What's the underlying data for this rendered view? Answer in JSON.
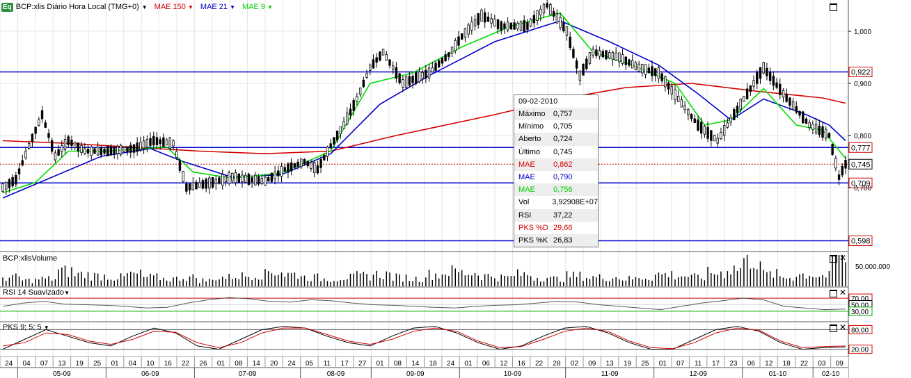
{
  "header": {
    "logo": "Eq",
    "symbol_title": "BCP:xlis Diário Hora Local (TMG+0)",
    "indicators": [
      {
        "label": "MAE 150",
        "color": "#d40000"
      },
      {
        "label": "MAE 21",
        "color": "#0000cc"
      },
      {
        "label": "MAE 9",
        "color": "#00cc00"
      }
    ]
  },
  "price_panel": {
    "y_ticks": [
      "1,000",
      "0,900",
      "0,800",
      "0,700"
    ],
    "h_lines": [
      {
        "value": 0.922,
        "label": "0,922"
      },
      {
        "value": 0.777,
        "label": "0,777"
      },
      {
        "value": 0.709,
        "label": "0,709"
      },
      {
        "value": 0.598,
        "label": "0,598"
      }
    ],
    "last_line": {
      "value": 0.745,
      "label": "0,745"
    }
  },
  "info_box": {
    "date": "09-02-2010",
    "rows": [
      {
        "label": "Máximo",
        "value": "0,757",
        "color": "#000000"
      },
      {
        "label": "Mínimo",
        "value": "0,705",
        "color": "#000000"
      },
      {
        "label": "Aberto",
        "value": "0,724",
        "color": "#000000"
      },
      {
        "label": "Último",
        "value": "0,745",
        "color": "#000000"
      },
      {
        "label": "MAE",
        "value": "0,862",
        "color": "#d40000"
      },
      {
        "label": "MAE",
        "value": "0,790",
        "color": "#0000cc"
      },
      {
        "label": "MAE",
        "value": "0,756",
        "color": "#00cc00"
      },
      {
        "label": "Vol",
        "value": "3,92908E+07",
        "color": "#000000"
      },
      {
        "label": "RSI",
        "value": "37,22",
        "color": "#000000"
      },
      {
        "label": "PKS %D",
        "value": "29,66",
        "color": "#d40000"
      },
      {
        "label": "PKS %K",
        "value": "26,83",
        "color": "#000000"
      }
    ]
  },
  "volume_panel": {
    "title": "BCP:xlisVolume",
    "tick_label": "50.000.000"
  },
  "rsi_panel": {
    "title": "RSI 14 Suavizado",
    "levels": [
      "70,00",
      "50,00",
      "30,00"
    ]
  },
  "pks_panel": {
    "title": "PKS 9; 5; 5",
    "levels": [
      "80,00",
      "20,00"
    ]
  },
  "x_axis": {
    "day_labels": [
      "24",
      "04",
      "07",
      "13",
      "19",
      "25",
      "01",
      "04",
      "10",
      "16",
      "22",
      "26",
      "01",
      "08",
      "14",
      "20",
      "24",
      "05",
      "11",
      "17",
      "27",
      "01",
      "08",
      "14",
      "18",
      "24",
      "01",
      "06",
      "12",
      "16",
      "22",
      "28",
      "02",
      "09",
      "13",
      "19",
      "25",
      "01",
      "07",
      "11",
      "17",
      "23",
      "06",
      "12",
      "18",
      "22",
      "03",
      "09"
    ],
    "month_labels": [
      "05-09",
      "06-09",
      "07-09",
      "08-09",
      "09-09",
      "10-09",
      "11-09",
      "12-09",
      "01-10",
      "02-10"
    ]
  },
  "chart_data": {
    "type": "candlestick",
    "y_range": [
      0.58,
      1.06
    ],
    "price_path": [
      [
        0.7,
        0
      ],
      [
        0.715,
        4
      ],
      [
        0.78,
        8
      ],
      [
        0.84,
        12
      ],
      [
        0.76,
        16
      ],
      [
        0.79,
        20
      ],
      [
        0.77,
        25
      ],
      [
        0.77,
        32
      ],
      [
        0.775,
        40
      ],
      [
        0.79,
        46
      ],
      [
        0.785,
        52
      ],
      [
        0.7,
        56
      ],
      [
        0.71,
        64
      ],
      [
        0.72,
        70
      ],
      [
        0.712,
        80
      ],
      [
        0.735,
        86
      ],
      [
        0.75,
        92
      ],
      [
        0.735,
        96
      ],
      [
        0.78,
        100
      ],
      [
        0.82,
        104
      ],
      [
        0.87,
        108
      ],
      [
        0.93,
        112
      ],
      [
        0.96,
        116
      ],
      [
        0.9,
        122
      ],
      [
        0.92,
        130
      ],
      [
        0.955,
        136
      ],
      [
        0.99,
        140
      ],
      [
        1.03,
        146
      ],
      [
        1.01,
        152
      ],
      [
        1.01,
        160
      ],
      [
        1.05,
        166
      ],
      [
        1.0,
        172
      ],
      [
        0.915,
        176
      ],
      [
        0.96,
        180
      ],
      [
        0.95,
        188
      ],
      [
        0.93,
        194
      ],
      [
        0.92,
        200
      ],
      [
        0.87,
        206
      ],
      [
        0.82,
        212
      ],
      [
        0.79,
        218
      ],
      [
        0.83,
        222
      ],
      [
        0.89,
        228
      ],
      [
        0.93,
        232
      ],
      [
        0.88,
        238
      ],
      [
        0.82,
        246
      ],
      [
        0.8,
        252
      ],
      [
        0.72,
        255
      ],
      [
        0.745,
        257
      ]
    ],
    "ema150": [
      [
        0,
        0.79
      ],
      [
        20,
        0.785
      ],
      [
        60,
        0.77
      ],
      [
        80,
        0.765
      ],
      [
        100,
        0.77
      ],
      [
        120,
        0.8
      ],
      [
        150,
        0.84
      ],
      [
        170,
        0.87
      ],
      [
        190,
        0.892
      ],
      [
        210,
        0.9
      ],
      [
        230,
        0.885
      ],
      [
        250,
        0.872
      ],
      [
        257,
        0.862
      ]
    ],
    "ema21": [
      [
        0,
        0.68
      ],
      [
        15,
        0.72
      ],
      [
        30,
        0.76
      ],
      [
        45,
        0.775
      ],
      [
        55,
        0.75
      ],
      [
        70,
        0.72
      ],
      [
        85,
        0.725
      ],
      [
        100,
        0.765
      ],
      [
        115,
        0.86
      ],
      [
        130,
        0.915
      ],
      [
        150,
        0.98
      ],
      [
        170,
        1.02
      ],
      [
        185,
        0.98
      ],
      [
        200,
        0.935
      ],
      [
        212,
        0.88
      ],
      [
        222,
        0.83
      ],
      [
        232,
        0.87
      ],
      [
        245,
        0.84
      ],
      [
        252,
        0.82
      ],
      [
        257,
        0.79
      ]
    ],
    "ema9": [
      [
        0,
        0.69
      ],
      [
        10,
        0.71
      ],
      [
        20,
        0.77
      ],
      [
        32,
        0.77
      ],
      [
        50,
        0.778
      ],
      [
        58,
        0.73
      ],
      [
        70,
        0.718
      ],
      [
        85,
        0.728
      ],
      [
        100,
        0.77
      ],
      [
        112,
        0.9
      ],
      [
        125,
        0.92
      ],
      [
        140,
        0.97
      ],
      [
        155,
        1.01
      ],
      [
        170,
        1.035
      ],
      [
        180,
        0.96
      ],
      [
        192,
        0.935
      ],
      [
        205,
        0.9
      ],
      [
        214,
        0.82
      ],
      [
        222,
        0.83
      ],
      [
        232,
        0.89
      ],
      [
        242,
        0.82
      ],
      [
        250,
        0.81
      ],
      [
        257,
        0.756
      ]
    ],
    "volume": [
      0.3,
      0.2,
      0.25,
      0.5,
      0.4,
      0.35,
      0.3,
      0.4,
      0.3,
      0.25,
      0.3,
      0.2,
      0.3,
      0.35,
      0.4,
      0.5,
      0.4,
      0.3,
      0.25,
      0.3,
      0.35,
      0.4,
      0.3,
      0.25,
      0.4,
      0.5,
      0.45,
      0.35,
      0.3,
      0.4,
      0.3,
      0.25,
      0.35,
      0.3,
      0.3,
      0.25,
      0.3,
      0.4,
      0.35,
      0.3,
      0.45,
      0.6,
      0.9,
      0.4,
      0.3,
      0.4,
      0.35,
      1.0
    ],
    "rsi": [
      45,
      55,
      60,
      52,
      50,
      48,
      45,
      40,
      42,
      55,
      65,
      72,
      68,
      60,
      58,
      65,
      62,
      55,
      50,
      48,
      45,
      42,
      40,
      45,
      48,
      50,
      55,
      60,
      58,
      50,
      45,
      40,
      35,
      45,
      55,
      62,
      70,
      65,
      45,
      40,
      35,
      37
    ],
    "pks_k": [
      20,
      50,
      80,
      60,
      40,
      30,
      60,
      85,
      70,
      30,
      20,
      50,
      80,
      90,
      85,
      60,
      40,
      30,
      60,
      85,
      90,
      70,
      40,
      20,
      30,
      60,
      85,
      90,
      70,
      40,
      20,
      20,
      50,
      80,
      90,
      75,
      40,
      20,
      25,
      27
    ],
    "pks_d": [
      30,
      40,
      70,
      65,
      45,
      35,
      50,
      75,
      72,
      40,
      25,
      40,
      70,
      85,
      85,
      65,
      45,
      35,
      50,
      75,
      85,
      75,
      45,
      25,
      28,
      50,
      75,
      85,
      75,
      45,
      25,
      22,
      40,
      70,
      85,
      78,
      45,
      25,
      28,
      30
    ]
  }
}
